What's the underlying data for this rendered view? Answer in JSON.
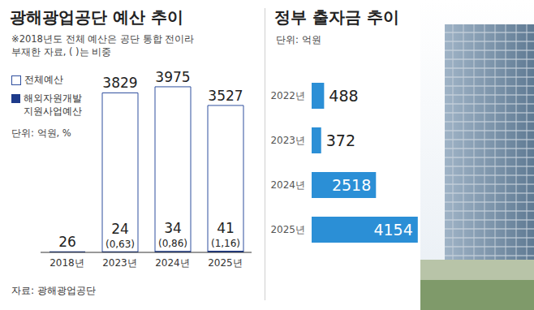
{
  "chart_data": [
    {
      "type": "bar",
      "title": "광해광업공단 예산 추이",
      "subtitle": "※2018년도 전체 예산은 공단 통합 전이라 부재한 자료, ( )는 비중",
      "unit": "단위: 억원, %",
      "source": "자료: 광해광업공단",
      "categories": [
        "2018년",
        "2023년",
        "2024년",
        "2025년"
      ],
      "series": [
        {
          "name": "전체예산",
          "color": "#ffffff",
          "values": [
            null,
            3829,
            3975,
            3527
          ]
        },
        {
          "name": "해외자원개발 지원사업예산",
          "color": "#1d3a8a",
          "values": [
            26,
            24,
            34,
            41
          ],
          "shares": [
            null,
            0.63,
            0.86,
            1.16
          ],
          "share_labels": [
            null,
            "(0,63)",
            "(0,86)",
            "(1,16)"
          ]
        }
      ],
      "ylim": [
        0,
        4500
      ],
      "yticks": [],
      "tick_labels": "x",
      "data_labels": true,
      "grid": false,
      "legend": "upper left"
    },
    {
      "type": "bar",
      "orientation": "horizontal",
      "title": "정부 출자금 추이",
      "unit": "단위: 억원",
      "categories": [
        "2022년",
        "2023년",
        "2024년",
        "2025년"
      ],
      "values": [
        488,
        372,
        2518,
        4154
      ],
      "color": "#2b8fd6",
      "xlim": [
        0,
        4700
      ],
      "xticks": [],
      "tick_labels": "y",
      "data_labels": true,
      "grid": false
    }
  ]
}
